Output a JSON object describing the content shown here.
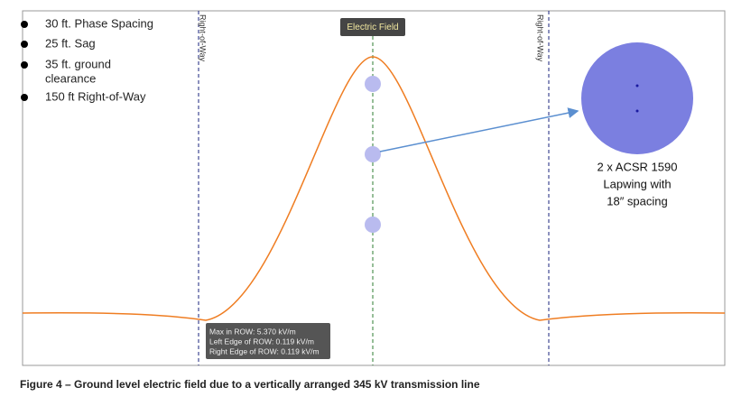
{
  "legend_items": [
    "30 ft. Phase Spacing",
    "25 ft. Sag",
    "35 ft. ground",
    "clearance",
    "150 ft Right-of-Way"
  ],
  "row_labels": {
    "left": "Right-of-Way",
    "right": "Right-of-Way"
  },
  "field_label": "Electric Field",
  "conductor_label": [
    "2 x ACSR 1590",
    "Lapwing with",
    "18″ spacing"
  ],
  "tooltip": [
    "Max in ROW: 5.370 kV/m",
    "Left Edge of ROW: 0.119 kV/m",
    "Right Edge of ROW: 0.119 kV/m"
  ],
  "caption": "Figure 4 – Ground level electric field due to a vertically arranged 345 kV transmission line"
}
